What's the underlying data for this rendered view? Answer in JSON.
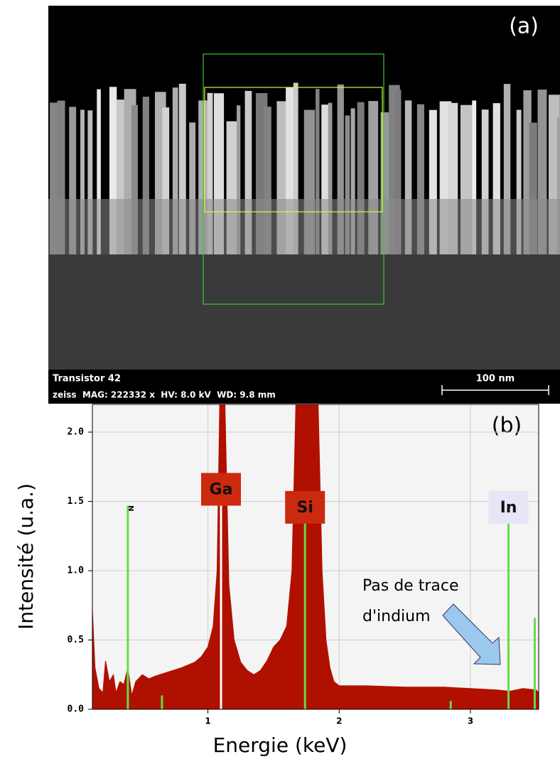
{
  "panel_a": {
    "label": "(a)",
    "caption": "Transistor 42",
    "info": "zeiss  MAG: 222332 x  HV: 8.0 kV  WD: 9.8 mm",
    "scale_bar": "100 nm"
  },
  "chart_data": {
    "type": "area",
    "panel_label": "(b)",
    "x_label": "Energie (keV)",
    "y_label": "Intensité (u.a.)",
    "color": "#b01000",
    "xlim": [
      0.12,
      3.52
    ],
    "ylim": [
      0,
      2.2
    ],
    "xticks": [
      1,
      2,
      3
    ],
    "yticks": [
      {
        "value": 0,
        "label": "0.0"
      },
      {
        "value": 0.5,
        "label": "0.5"
      },
      {
        "value": 1,
        "label": "1.0"
      },
      {
        "value": 1.5,
        "label": "1.5"
      },
      {
        "value": 2,
        "label": "2.0"
      }
    ],
    "grid": true,
    "x": [
      0.12,
      0.14,
      0.17,
      0.2,
      0.22,
      0.25,
      0.28,
      0.3,
      0.33,
      0.36,
      0.39,
      0.42,
      0.45,
      0.5,
      0.55,
      0.6,
      0.7,
      0.8,
      0.9,
      0.95,
      1.0,
      1.04,
      1.07,
      1.09,
      1.13,
      1.16,
      1.2,
      1.25,
      1.3,
      1.35,
      1.4,
      1.45,
      1.5,
      1.55,
      1.6,
      1.64,
      1.67,
      1.84,
      1.87,
      1.9,
      1.93,
      1.96,
      2.0,
      2.2,
      2.5,
      2.8,
      3.0,
      3.2,
      3.3,
      3.4,
      3.5,
      3.52
    ],
    "values": [
      0.72,
      0.3,
      0.15,
      0.12,
      0.35,
      0.2,
      0.25,
      0.12,
      0.2,
      0.18,
      0.3,
      0.1,
      0.2,
      0.25,
      0.22,
      0.24,
      0.27,
      0.3,
      0.34,
      0.38,
      0.45,
      0.6,
      1.0,
      2.2,
      2.2,
      0.9,
      0.5,
      0.34,
      0.28,
      0.25,
      0.28,
      0.35,
      0.45,
      0.5,
      0.6,
      1.0,
      2.2,
      2.2,
      1.0,
      0.5,
      0.3,
      0.2,
      0.17,
      0.17,
      0.16,
      0.16,
      0.15,
      0.14,
      0.13,
      0.15,
      0.14,
      0.12
    ],
    "element_lines": [
      {
        "label": "N",
        "x": 0.39,
        "height": 1.47,
        "color": "#66dd44"
      },
      {
        "label": "Ga",
        "x": 1.1,
        "height": 1.5,
        "color": "#ffffff"
      },
      {
        "label": "Si",
        "x": 1.74,
        "height": 1.37,
        "color": "#66dd44"
      },
      {
        "label": "In",
        "x": 3.29,
        "height": 1.37,
        "color": "#66dd44"
      }
    ],
    "minor_lines": {
      "x": [
        0.65,
        2.85,
        3.49
      ],
      "values": [
        0.1,
        0.06,
        0.66
      ],
      "color": "#66dd44"
    },
    "annotation": [
      "Pas de trace",
      "d'indium"
    ]
  }
}
